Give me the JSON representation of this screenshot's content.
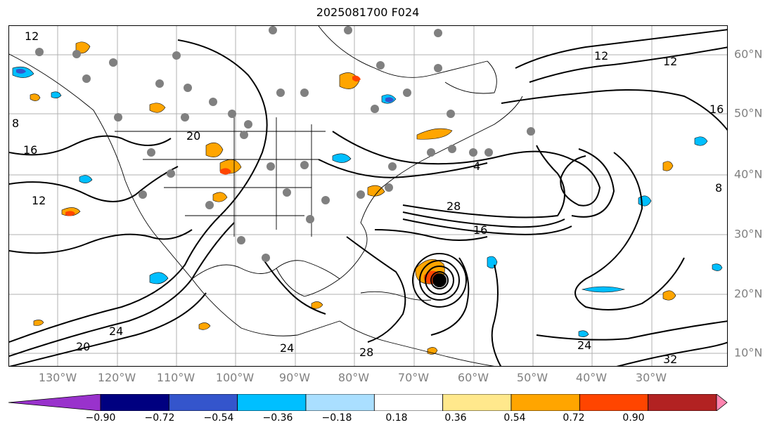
{
  "title": "2025081700 F024",
  "longitude_labels": [
    "130°W",
    "120°W",
    "110°W",
    "100°W",
    "90°W",
    "80°W",
    "70°W",
    "60°W",
    "50°W",
    "40°W",
    "30°W"
  ],
  "latitude_labels": [
    "60°N",
    "50°N",
    "40°N",
    "30°N",
    "20°N",
    "10°N"
  ],
  "contour_labels": [
    "12",
    "12",
    "12",
    "12",
    "16",
    "16",
    "16",
    "20",
    "20",
    "24",
    "24",
    "24",
    "28",
    "28",
    "32",
    "8",
    "8",
    "4"
  ],
  "colorbar": {
    "ticks": [
      "−0.90",
      "−0.72",
      "−0.54",
      "−0.36",
      "−0.18",
      "0.18",
      "0.36",
      "0.54",
      "0.72",
      "0.90"
    ],
    "colors": [
      "#9932cc",
      "#000080",
      "#3455cc",
      "#00bfff",
      "#aadfff",
      "#ffffff",
      "#ffe88c",
      "#ffa500",
      "#ff4500",
      "#b22222",
      "#ff85b0"
    ]
  },
  "colors": {
    "positive_shading": "#ffa500",
    "negative_shading": "#00bfff",
    "stations": "#808080",
    "contours": "#000000"
  }
}
